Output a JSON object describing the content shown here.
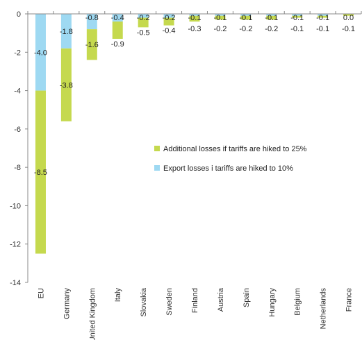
{
  "colors": {
    "tariff_25": "#C5D94E",
    "tariff_10": "#9ED9F2",
    "axis": "#888888",
    "text": "#333333"
  },
  "chart_data": {
    "type": "bar",
    "stacked": true,
    "title": "",
    "xlabel": "",
    "ylabel": "",
    "ylim": [
      -14,
      0
    ],
    "yticks": [
      0,
      -2,
      -4,
      -6,
      -8,
      -10,
      -12,
      -14
    ],
    "grid": false,
    "legend_position": "center-right",
    "categories": [
      "EU",
      "Germany",
      "United Kingdom",
      "Italy",
      "Slovakia",
      "Sweden",
      "Finland",
      "Austria",
      "Spain",
      "Hungary",
      "Belgium",
      "Netherlands",
      "France"
    ],
    "series": [
      {
        "name": "Export losses i tariffs are hiked to 10%",
        "color": "#9ED9F2",
        "values": [
          -4.0,
          -1.8,
          -0.8,
          -0.4,
          -0.2,
          -0.2,
          -0.1,
          -0.1,
          -0.1,
          -0.1,
          -0.1,
          -0.1,
          0.0
        ],
        "labels": [
          "-4.0",
          "-1.8",
          "-0.8",
          "-0.4",
          "-0.2",
          "-0.2",
          "-0.1",
          "-0.1",
          "-0.1",
          "-0.1",
          "-0.1",
          "-0.1",
          "0.0"
        ]
      },
      {
        "name": "Additional losses if tariffs are hiked to 25%",
        "color": "#C5D94E",
        "values": [
          -8.5,
          -3.8,
          -1.6,
          -0.9,
          -0.5,
          -0.4,
          -0.3,
          -0.2,
          -0.2,
          -0.2,
          -0.1,
          -0.1,
          -0.1
        ],
        "labels": [
          "-8.5",
          "-3.8",
          "-1.6",
          "-0.9",
          "-0.5",
          "-0.4",
          "-0.3",
          "-0.2",
          "-0.2",
          "-0.2",
          "-0.1",
          "-0.1",
          "-0.1"
        ]
      }
    ],
    "legend_order": [
      1,
      0
    ]
  }
}
